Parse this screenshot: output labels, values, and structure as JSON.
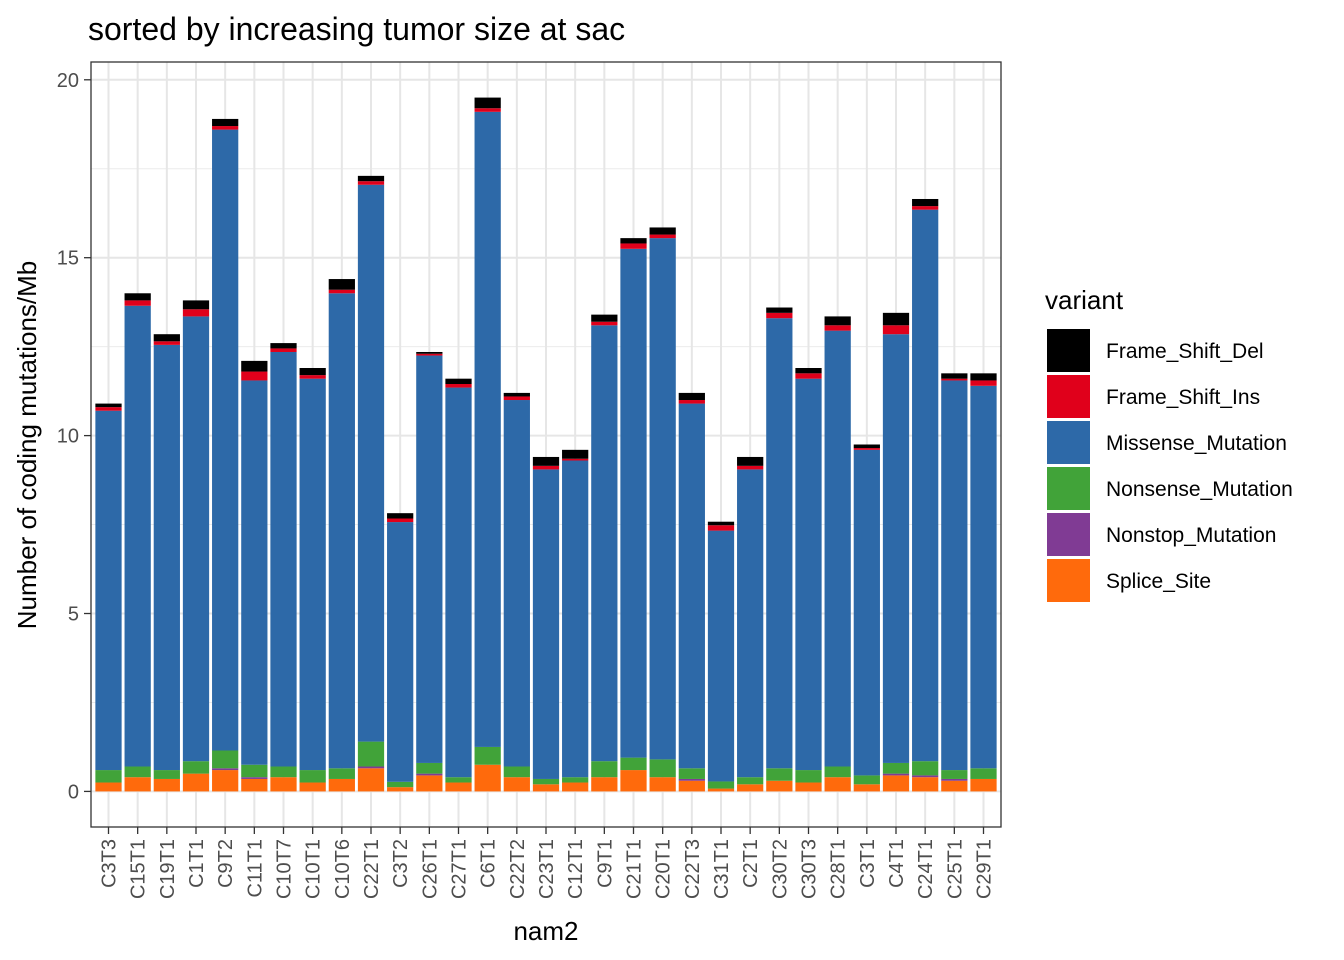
{
  "chart_data": {
    "type": "bar",
    "stacked": true,
    "title": "sorted by increasing tumor size at sac",
    "xlabel": "nam2",
    "ylabel": "Number of coding mutations/Mb",
    "ylim": [
      -1,
      20.5
    ],
    "yticks": [
      0,
      5,
      10,
      15,
      20
    ],
    "grid": true,
    "legend": {
      "title": "variant",
      "position": "right"
    },
    "categories": [
      "C3T3",
      "C15T1",
      "C19T1",
      "C1T1",
      "C9T2",
      "C11T1",
      "C10T7",
      "C10T1",
      "C10T6",
      "C22T1",
      "C3T2",
      "C26T1",
      "C27T1",
      "C6T1",
      "C22T2",
      "C23T1",
      "C12T1",
      "C9T1",
      "C21T1",
      "C20T1",
      "C22T3",
      "C31T1",
      "C2T1",
      "C30T2",
      "C30T3",
      "C28T1",
      "C3T1",
      "C4T1",
      "C24T1",
      "C25T1",
      "C29T1"
    ],
    "series": [
      {
        "name": "Splice_Site",
        "color": "#FF6A0C",
        "values": [
          0.25,
          0.4,
          0.35,
          0.5,
          0.6,
          0.35,
          0.4,
          0.25,
          0.35,
          0.65,
          0.12,
          0.45,
          0.25,
          0.75,
          0.4,
          0.2,
          0.25,
          0.4,
          0.6,
          0.4,
          0.3,
          0.08,
          0.2,
          0.3,
          0.25,
          0.4,
          0.2,
          0.45,
          0.4,
          0.3,
          0.35
        ]
      },
      {
        "name": "Nonstop_Mutation",
        "color": "#803B94",
        "values": [
          0,
          0,
          0,
          0,
          0.05,
          0.05,
          0,
          0,
          0,
          0.05,
          0,
          0.05,
          0,
          0,
          0,
          0,
          0,
          0,
          0,
          0,
          0.05,
          0,
          0,
          0,
          0,
          0,
          0,
          0.05,
          0.05,
          0.05,
          0
        ]
      },
      {
        "name": "Nonsense_Mutation",
        "color": "#41A339",
        "values": [
          0.35,
          0.3,
          0.25,
          0.35,
          0.5,
          0.35,
          0.3,
          0.35,
          0.3,
          0.7,
          0.15,
          0.3,
          0.15,
          0.5,
          0.3,
          0.15,
          0.15,
          0.45,
          0.35,
          0.5,
          0.3,
          0.2,
          0.2,
          0.35,
          0.35,
          0.3,
          0.25,
          0.3,
          0.4,
          0.25,
          0.3
        ]
      },
      {
        "name": "Missense_Mutation",
        "color": "#2D69A8",
        "values": [
          10.1,
          12.95,
          11.95,
          12.5,
          17.45,
          10.8,
          11.65,
          11.0,
          13.35,
          15.65,
          7.3,
          11.45,
          10.95,
          17.85,
          10.3,
          8.7,
          8.9,
          12.25,
          14.3,
          14.65,
          10.25,
          7.05,
          8.65,
          12.65,
          11.0,
          12.25,
          9.15,
          12.05,
          15.5,
          10.95,
          10.75
        ]
      },
      {
        "name": "Frame_Shift_Ins",
        "color": "#E0001B",
        "values": [
          0.1,
          0.15,
          0.1,
          0.2,
          0.1,
          0.25,
          0.1,
          0.1,
          0.1,
          0.1,
          0.1,
          0.05,
          0.1,
          0.1,
          0.1,
          0.1,
          0.05,
          0.1,
          0.15,
          0.1,
          0.1,
          0.15,
          0.1,
          0.15,
          0.15,
          0.15,
          0.05,
          0.25,
          0.1,
          0.05,
          0.15
        ]
      },
      {
        "name": "Frame_Shift_Del",
        "color": "#000000",
        "values": [
          0.1,
          0.2,
          0.2,
          0.25,
          0.2,
          0.3,
          0.15,
          0.2,
          0.3,
          0.15,
          0.15,
          0.05,
          0.15,
          0.3,
          0.1,
          0.25,
          0.25,
          0.2,
          0.15,
          0.2,
          0.2,
          0.1,
          0.25,
          0.15,
          0.15,
          0.25,
          0.1,
          0.35,
          0.2,
          0.15,
          0.2
        ]
      }
    ]
  }
}
